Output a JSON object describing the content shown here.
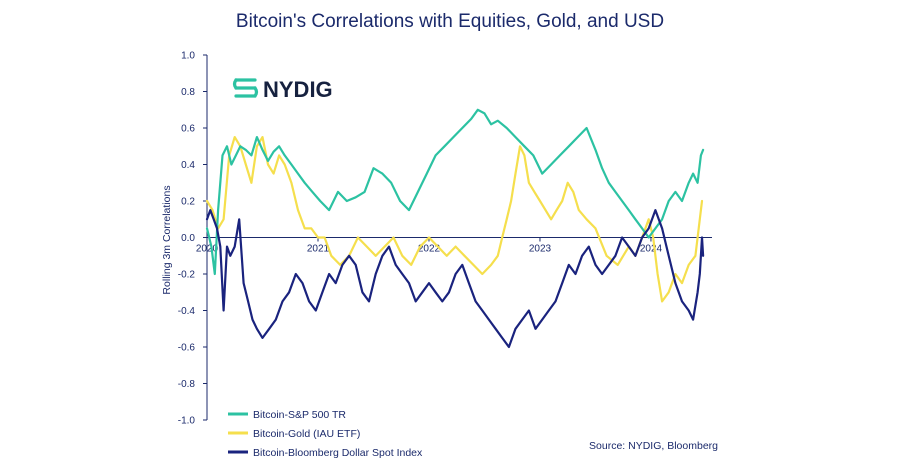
{
  "chart_data": {
    "type": "line",
    "title": "Bitcoin's Correlations with Equities, Gold, and USD",
    "xlabel": "",
    "ylabel": "Rolling 3m Correlations",
    "ylim": [
      -1.0,
      1.0
    ],
    "xlim": [
      2020.0,
      2024.55
    ],
    "yticks": [
      1.0,
      0.8,
      0.6,
      0.4,
      0.2,
      0.0,
      -0.2,
      -0.4,
      -0.6,
      -0.8,
      -1.0
    ],
    "ytick_labels": [
      "1.0",
      "0.8",
      "0.6",
      "0.4",
      "0.2",
      "0.0",
      "-0.2",
      "-0.4",
      "-0.6",
      "-0.8",
      "-1.0"
    ],
    "xticks": [
      2020,
      2021,
      2022,
      2023,
      2024
    ],
    "xtick_labels": [
      "2020",
      "2021",
      "2022",
      "2023",
      "2024"
    ],
    "series": [
      {
        "name": "Bitcoin-S&P 500 TR",
        "color": "#2cc2a2",
        "x": [
          2020.0,
          2020.04,
          2020.07,
          2020.1,
          2020.14,
          2020.18,
          2020.22,
          2020.26,
          2020.3,
          2020.35,
          2020.4,
          2020.45,
          2020.5,
          2020.55,
          2020.6,
          2020.65,
          2020.7,
          2020.76,
          2020.82,
          2020.88,
          2020.95,
          2021.02,
          2021.1,
          2021.18,
          2021.26,
          2021.34,
          2021.42,
          2021.5,
          2021.58,
          2021.66,
          2021.74,
          2021.82,
          2021.9,
          2021.98,
          2022.06,
          2022.14,
          2022.22,
          2022.3,
          2022.38,
          2022.44,
          2022.5,
          2022.56,
          2022.62,
          2022.7,
          2022.78,
          2022.86,
          2022.94,
          2023.02,
          2023.1,
          2023.18,
          2023.26,
          2023.34,
          2023.42,
          2023.5,
          2023.56,
          2023.62,
          2023.68,
          2023.74,
          2023.8,
          2023.86,
          2023.92,
          2023.98,
          2024.04,
          2024.1,
          2024.16,
          2024.22,
          2024.28,
          2024.34,
          2024.38,
          2024.42,
          2024.45,
          2024.47
        ],
        "values": [
          0.05,
          -0.05,
          -0.2,
          0.15,
          0.45,
          0.5,
          0.4,
          0.45,
          0.5,
          0.48,
          0.45,
          0.55,
          0.48,
          0.42,
          0.47,
          0.5,
          0.45,
          0.4,
          0.35,
          0.3,
          0.25,
          0.2,
          0.15,
          0.25,
          0.2,
          0.22,
          0.25,
          0.38,
          0.35,
          0.3,
          0.2,
          0.15,
          0.25,
          0.35,
          0.45,
          0.5,
          0.55,
          0.6,
          0.65,
          0.7,
          0.68,
          0.62,
          0.64,
          0.6,
          0.55,
          0.5,
          0.45,
          0.35,
          0.4,
          0.45,
          0.5,
          0.55,
          0.6,
          0.48,
          0.38,
          0.3,
          0.25,
          0.2,
          0.15,
          0.1,
          0.05,
          0.0,
          0.05,
          0.1,
          0.2,
          0.25,
          0.2,
          0.3,
          0.35,
          0.3,
          0.45,
          0.48
        ]
      },
      {
        "name": "Bitcoin-Gold (IAU ETF)",
        "color": "#f5df4d",
        "x": [
          2020.0,
          2020.05,
          2020.1,
          2020.15,
          2020.2,
          2020.25,
          2020.3,
          2020.35,
          2020.4,
          2020.45,
          2020.5,
          2020.55,
          2020.6,
          2020.65,
          2020.7,
          2020.76,
          2020.82,
          2020.88,
          2020.94,
          2021.0,
          2021.06,
          2021.12,
          2021.2,
          2021.28,
          2021.36,
          2021.44,
          2021.52,
          2021.6,
          2021.68,
          2021.76,
          2021.84,
          2021.92,
          2022.0,
          2022.08,
          2022.16,
          2022.24,
          2022.32,
          2022.4,
          2022.48,
          2022.56,
          2022.62,
          2022.66,
          2022.7,
          2022.74,
          2022.78,
          2022.82,
          2022.86,
          2022.9,
          2022.95,
          2023.0,
          2023.05,
          2023.1,
          2023.15,
          2023.2,
          2023.25,
          2023.3,
          2023.35,
          2023.42,
          2023.5,
          2023.6,
          2023.7,
          2023.8,
          2023.86,
          2023.92,
          2023.98,
          2024.02,
          2024.06,
          2024.1,
          2024.16,
          2024.22,
          2024.28,
          2024.34,
          2024.4,
          2024.44,
          2024.46
        ],
        "values": [
          0.2,
          0.15,
          0.05,
          0.1,
          0.45,
          0.55,
          0.5,
          0.4,
          0.3,
          0.5,
          0.55,
          0.4,
          0.35,
          0.45,
          0.4,
          0.3,
          0.15,
          0.05,
          0.05,
          0.0,
          0.0,
          -0.1,
          -0.15,
          -0.1,
          0.0,
          -0.05,
          -0.1,
          -0.05,
          0.0,
          -0.1,
          -0.15,
          -0.05,
          0.0,
          -0.05,
          -0.1,
          -0.05,
          -0.1,
          -0.15,
          -0.2,
          -0.15,
          -0.1,
          0.0,
          0.1,
          0.2,
          0.35,
          0.5,
          0.45,
          0.3,
          0.25,
          0.2,
          0.15,
          0.1,
          0.15,
          0.2,
          0.3,
          0.25,
          0.15,
          0.1,
          0.05,
          -0.1,
          -0.15,
          -0.05,
          -0.1,
          0.0,
          0.1,
          0.0,
          -0.2,
          -0.35,
          -0.3,
          -0.2,
          -0.25,
          -0.15,
          -0.1,
          0.1,
          0.2
        ]
      },
      {
        "name": "Bitcoin-Bloomberg Dollar Spot Index",
        "color": "#1a237e",
        "x": [
          2020.0,
          2020.03,
          2020.06,
          2020.09,
          2020.12,
          2020.15,
          2020.18,
          2020.21,
          2020.25,
          2020.29,
          2020.33,
          2020.37,
          2020.41,
          2020.45,
          2020.5,
          2020.56,
          2020.62,
          2020.68,
          2020.74,
          2020.8,
          2020.86,
          2020.92,
          2020.98,
          2021.04,
          2021.1,
          2021.16,
          2021.22,
          2021.28,
          2021.34,
          2021.4,
          2021.46,
          2021.52,
          2021.58,
          2021.64,
          2021.7,
          2021.76,
          2021.82,
          2021.88,
          2021.94,
          2022.0,
          2022.06,
          2022.12,
          2022.18,
          2022.24,
          2022.3,
          2022.36,
          2022.42,
          2022.48,
          2022.54,
          2022.6,
          2022.66,
          2022.72,
          2022.78,
          2022.84,
          2022.9,
          2022.96,
          2023.02,
          2023.08,
          2023.14,
          2023.2,
          2023.26,
          2023.32,
          2023.38,
          2023.44,
          2023.5,
          2023.56,
          2023.62,
          2023.68,
          2023.74,
          2023.8,
          2023.86,
          2023.92,
          2023.98,
          2024.04,
          2024.1,
          2024.16,
          2024.22,
          2024.28,
          2024.34,
          2024.38,
          2024.42,
          2024.44,
          2024.46,
          2024.47
        ],
        "values": [
          0.1,
          0.15,
          0.1,
          0.05,
          -0.05,
          -0.4,
          -0.05,
          -0.1,
          -0.05,
          0.1,
          -0.25,
          -0.35,
          -0.45,
          -0.5,
          -0.55,
          -0.5,
          -0.45,
          -0.35,
          -0.3,
          -0.2,
          -0.25,
          -0.35,
          -0.4,
          -0.3,
          -0.2,
          -0.25,
          -0.15,
          -0.1,
          -0.15,
          -0.3,
          -0.35,
          -0.2,
          -0.1,
          -0.05,
          -0.15,
          -0.2,
          -0.25,
          -0.35,
          -0.3,
          -0.25,
          -0.3,
          -0.35,
          -0.3,
          -0.2,
          -0.15,
          -0.25,
          -0.35,
          -0.4,
          -0.45,
          -0.5,
          -0.55,
          -0.6,
          -0.5,
          -0.45,
          -0.4,
          -0.5,
          -0.45,
          -0.4,
          -0.35,
          -0.25,
          -0.15,
          -0.2,
          -0.1,
          -0.05,
          -0.15,
          -0.2,
          -0.15,
          -0.1,
          0.0,
          -0.05,
          -0.1,
          0.0,
          0.05,
          0.15,
          0.05,
          -0.1,
          -0.25,
          -0.35,
          -0.4,
          -0.45,
          -0.3,
          -0.2,
          0.0,
          -0.1
        ]
      }
    ],
    "legend_position": "bottom-left",
    "source": "Source: NYDIG, Bloomberg",
    "brand": "NYDIG",
    "zero_line": true
  },
  "colors": {
    "axis": "#1b2a6b",
    "title": "#1b2a6b",
    "brand_icon": "#2cc2a2",
    "brand_text": "#16213f"
  }
}
